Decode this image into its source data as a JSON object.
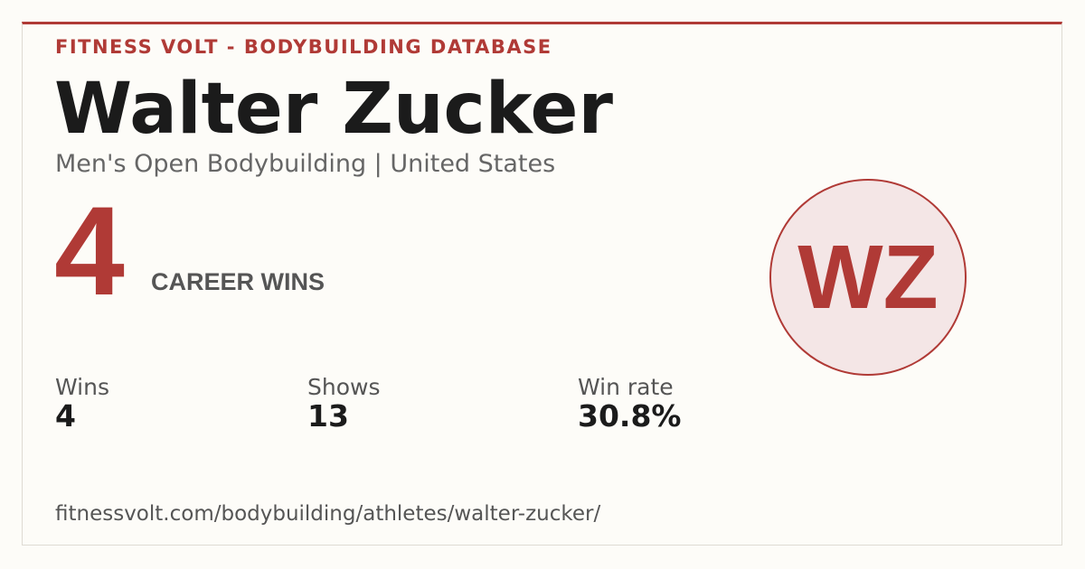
{
  "header": {
    "kicker": "FITNESS VOLT - BODYBUILDING DATABASE",
    "name": "Walter Zucker",
    "subtitle": "Men's Open Bodybuilding | United States"
  },
  "hero": {
    "value": "4",
    "label": "CAREER WINS"
  },
  "avatar": {
    "initials": "WZ"
  },
  "stats": [
    {
      "label": "Wins",
      "value": "4"
    },
    {
      "label": "Shows",
      "value": "13"
    },
    {
      "label": "Win rate",
      "value": "30.8%"
    }
  ],
  "footer": {
    "url": "fitnessvolt.com/bodybuilding/athletes/walter-zucker/"
  }
}
